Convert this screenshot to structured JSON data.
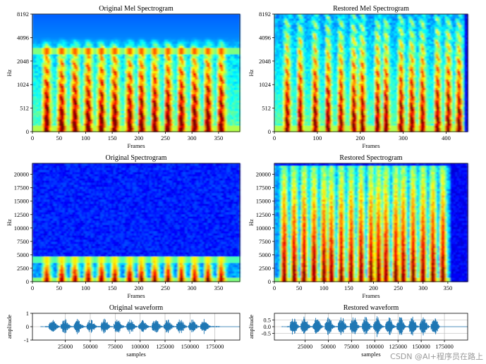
{
  "colors": {
    "background": "#00008f",
    "waveform": "#1f77b4",
    "jet": [
      "#00007f",
      "#0000ff",
      "#007fff",
      "#00ffff",
      "#7fff7f",
      "#ffff00",
      "#ff7f00",
      "#ff0000",
      "#7f0000"
    ]
  },
  "watermark": "CSDN @AI+程序员在路上",
  "chart_data": [
    {
      "id": "orig_mel",
      "type": "heatmap",
      "title": "Original Mel Spectrogram",
      "xlabel": "Frames",
      "ylabel": "Hz",
      "xlim": [
        0,
        390
      ],
      "xticks": [
        0,
        50,
        100,
        150,
        200,
        250,
        300,
        350
      ],
      "yticks": [
        "0",
        "512",
        "1024",
        "2048",
        "4096",
        "8192"
      ],
      "scale": "mel",
      "content_end": 390,
      "onsets": [
        22,
        50,
        75,
        100,
        125,
        150,
        178,
        200,
        225,
        250,
        275,
        300,
        325,
        350
      ],
      "band_top_hz": 3500
    },
    {
      "id": "rest_mel",
      "type": "heatmap",
      "title": "Restored Mel Spectrogram",
      "xlabel": "Frames",
      "ylabel": "Hz",
      "xlim": [
        0,
        450
      ],
      "xticks": [
        0,
        100,
        200,
        300,
        400
      ],
      "yticks": [
        "0",
        "512",
        "1024",
        "2048",
        "4096",
        "8192"
      ],
      "scale": "mel",
      "content_end": 440,
      "onsets": [
        25,
        55,
        90,
        120,
        150,
        180,
        200,
        235,
        255,
        290,
        315,
        340,
        375,
        400,
        425
      ],
      "band_top_hz": 16000
    },
    {
      "id": "orig_spec",
      "type": "heatmap",
      "title": "Original Spectrogram",
      "xlabel": "Frames",
      "ylabel": "Hz",
      "xlim": [
        0,
        390
      ],
      "xticks": [
        0,
        50,
        100,
        150,
        200,
        250,
        300,
        350
      ],
      "ylim": [
        0,
        22050
      ],
      "yticks": [
        0,
        2500,
        5000,
        7500,
        10000,
        12500,
        15000,
        17500,
        20000
      ],
      "scale": "linear",
      "content_end": 390,
      "onsets": [
        22,
        50,
        75,
        100,
        125,
        150,
        178,
        200,
        225,
        250,
        275,
        300,
        325,
        350
      ],
      "band_top_hz": 4600
    },
    {
      "id": "rest_spec",
      "type": "heatmap",
      "title": "Restored Spectrogram",
      "xlabel": "Frames",
      "ylabel": "Hz",
      "xlim": [
        0,
        390
      ],
      "xticks": [
        0,
        50,
        100,
        150,
        200,
        250,
        300,
        350
      ],
      "ylim": [
        0,
        22050
      ],
      "yticks": [
        0,
        2500,
        5000,
        7500,
        10000,
        12500,
        15000,
        17500,
        20000
      ],
      "scale": "linear",
      "content_end": 355,
      "onsets": [
        15,
        35,
        55,
        75,
        95,
        110,
        130,
        150,
        170,
        190,
        205,
        220,
        240,
        255,
        275,
        295,
        315,
        335
      ],
      "band_top_hz": 21500
    },
    {
      "id": "orig_wave",
      "type": "line",
      "title": "Original waveform",
      "xlabel": "samples",
      "ylabel": "amplitude",
      "xlim": [
        -8000,
        200000
      ],
      "ylim": [
        -1,
        1
      ],
      "xticks": [
        25000,
        50000,
        75000,
        100000,
        125000,
        150000,
        175000
      ],
      "yticks": [
        -1,
        0,
        1
      ],
      "grid": true,
      "content_end": 180000,
      "onsets": [
        10000,
        22000,
        35000,
        48000,
        62000,
        75000,
        88000,
        100000,
        113000,
        125000,
        138000,
        150000,
        162000
      ]
    },
    {
      "id": "rest_wave",
      "type": "line",
      "title": "Restored waveform",
      "xlabel": "samples",
      "ylabel": "amplitude",
      "xlim": [
        -8000,
        200000
      ],
      "ylim": [
        -1,
        1
      ],
      "xticks": [
        25000,
        50000,
        75000,
        100000,
        125000,
        150000,
        175000
      ],
      "yticks": [
        -0.5,
        0.0,
        0.5
      ],
      "grid": true,
      "content_end": 170000,
      "onsets": [
        10000,
        22000,
        35000,
        48000,
        62000,
        75000,
        88000,
        100000,
        113000,
        125000,
        138000,
        150000,
        162000
      ]
    }
  ]
}
